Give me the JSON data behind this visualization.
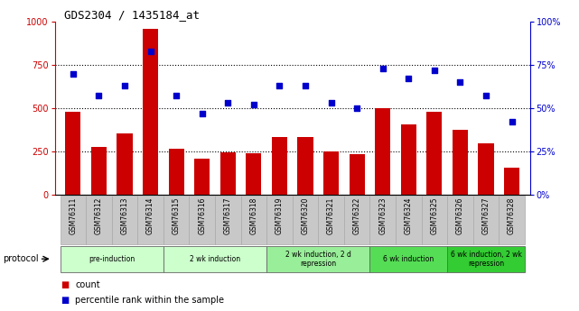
{
  "title": "GDS2304 / 1435184_at",
  "categories": [
    "GSM76311",
    "GSM76312",
    "GSM76313",
    "GSM76314",
    "GSM76315",
    "GSM76316",
    "GSM76317",
    "GSM76318",
    "GSM76319",
    "GSM76320",
    "GSM76321",
    "GSM76322",
    "GSM76323",
    "GSM76324",
    "GSM76325",
    "GSM76326",
    "GSM76327",
    "GSM76328"
  ],
  "bar_values": [
    480,
    275,
    355,
    960,
    265,
    205,
    245,
    240,
    330,
    330,
    250,
    235,
    500,
    405,
    480,
    375,
    295,
    155
  ],
  "scatter_values": [
    70,
    57,
    63,
    83,
    57,
    47,
    53,
    52,
    63,
    63,
    53,
    50,
    73,
    67,
    72,
    65,
    57,
    42
  ],
  "bar_color": "#CC0000",
  "scatter_color": "#0000CC",
  "ylim_left": [
    0,
    1000
  ],
  "ylim_right": [
    0,
    100
  ],
  "yticks_left": [
    0,
    250,
    500,
    750,
    1000
  ],
  "yticks_right": [
    0,
    25,
    50,
    75,
    100
  ],
  "protocols": [
    {
      "label": "pre-induction",
      "start": 0,
      "end": 4,
      "color": "#ccffcc"
    },
    {
      "label": "2 wk induction",
      "start": 4,
      "end": 8,
      "color": "#ccffcc"
    },
    {
      "label": "2 wk induction, 2 d\nrepression",
      "start": 8,
      "end": 12,
      "color": "#99ee99"
    },
    {
      "label": "6 wk induction",
      "start": 12,
      "end": 15,
      "color": "#55dd55"
    },
    {
      "label": "6 wk induction, 2 wk\nrepression",
      "start": 15,
      "end": 18,
      "color": "#33cc33"
    }
  ],
  "legend_count_label": "count",
  "legend_pct_label": "percentile rank within the sample",
  "protocol_label": "protocol",
  "background_color": "#ffffff",
  "tick_bg_color": "#c8c8c8",
  "dotted_lines": [
    250,
    500,
    750
  ]
}
